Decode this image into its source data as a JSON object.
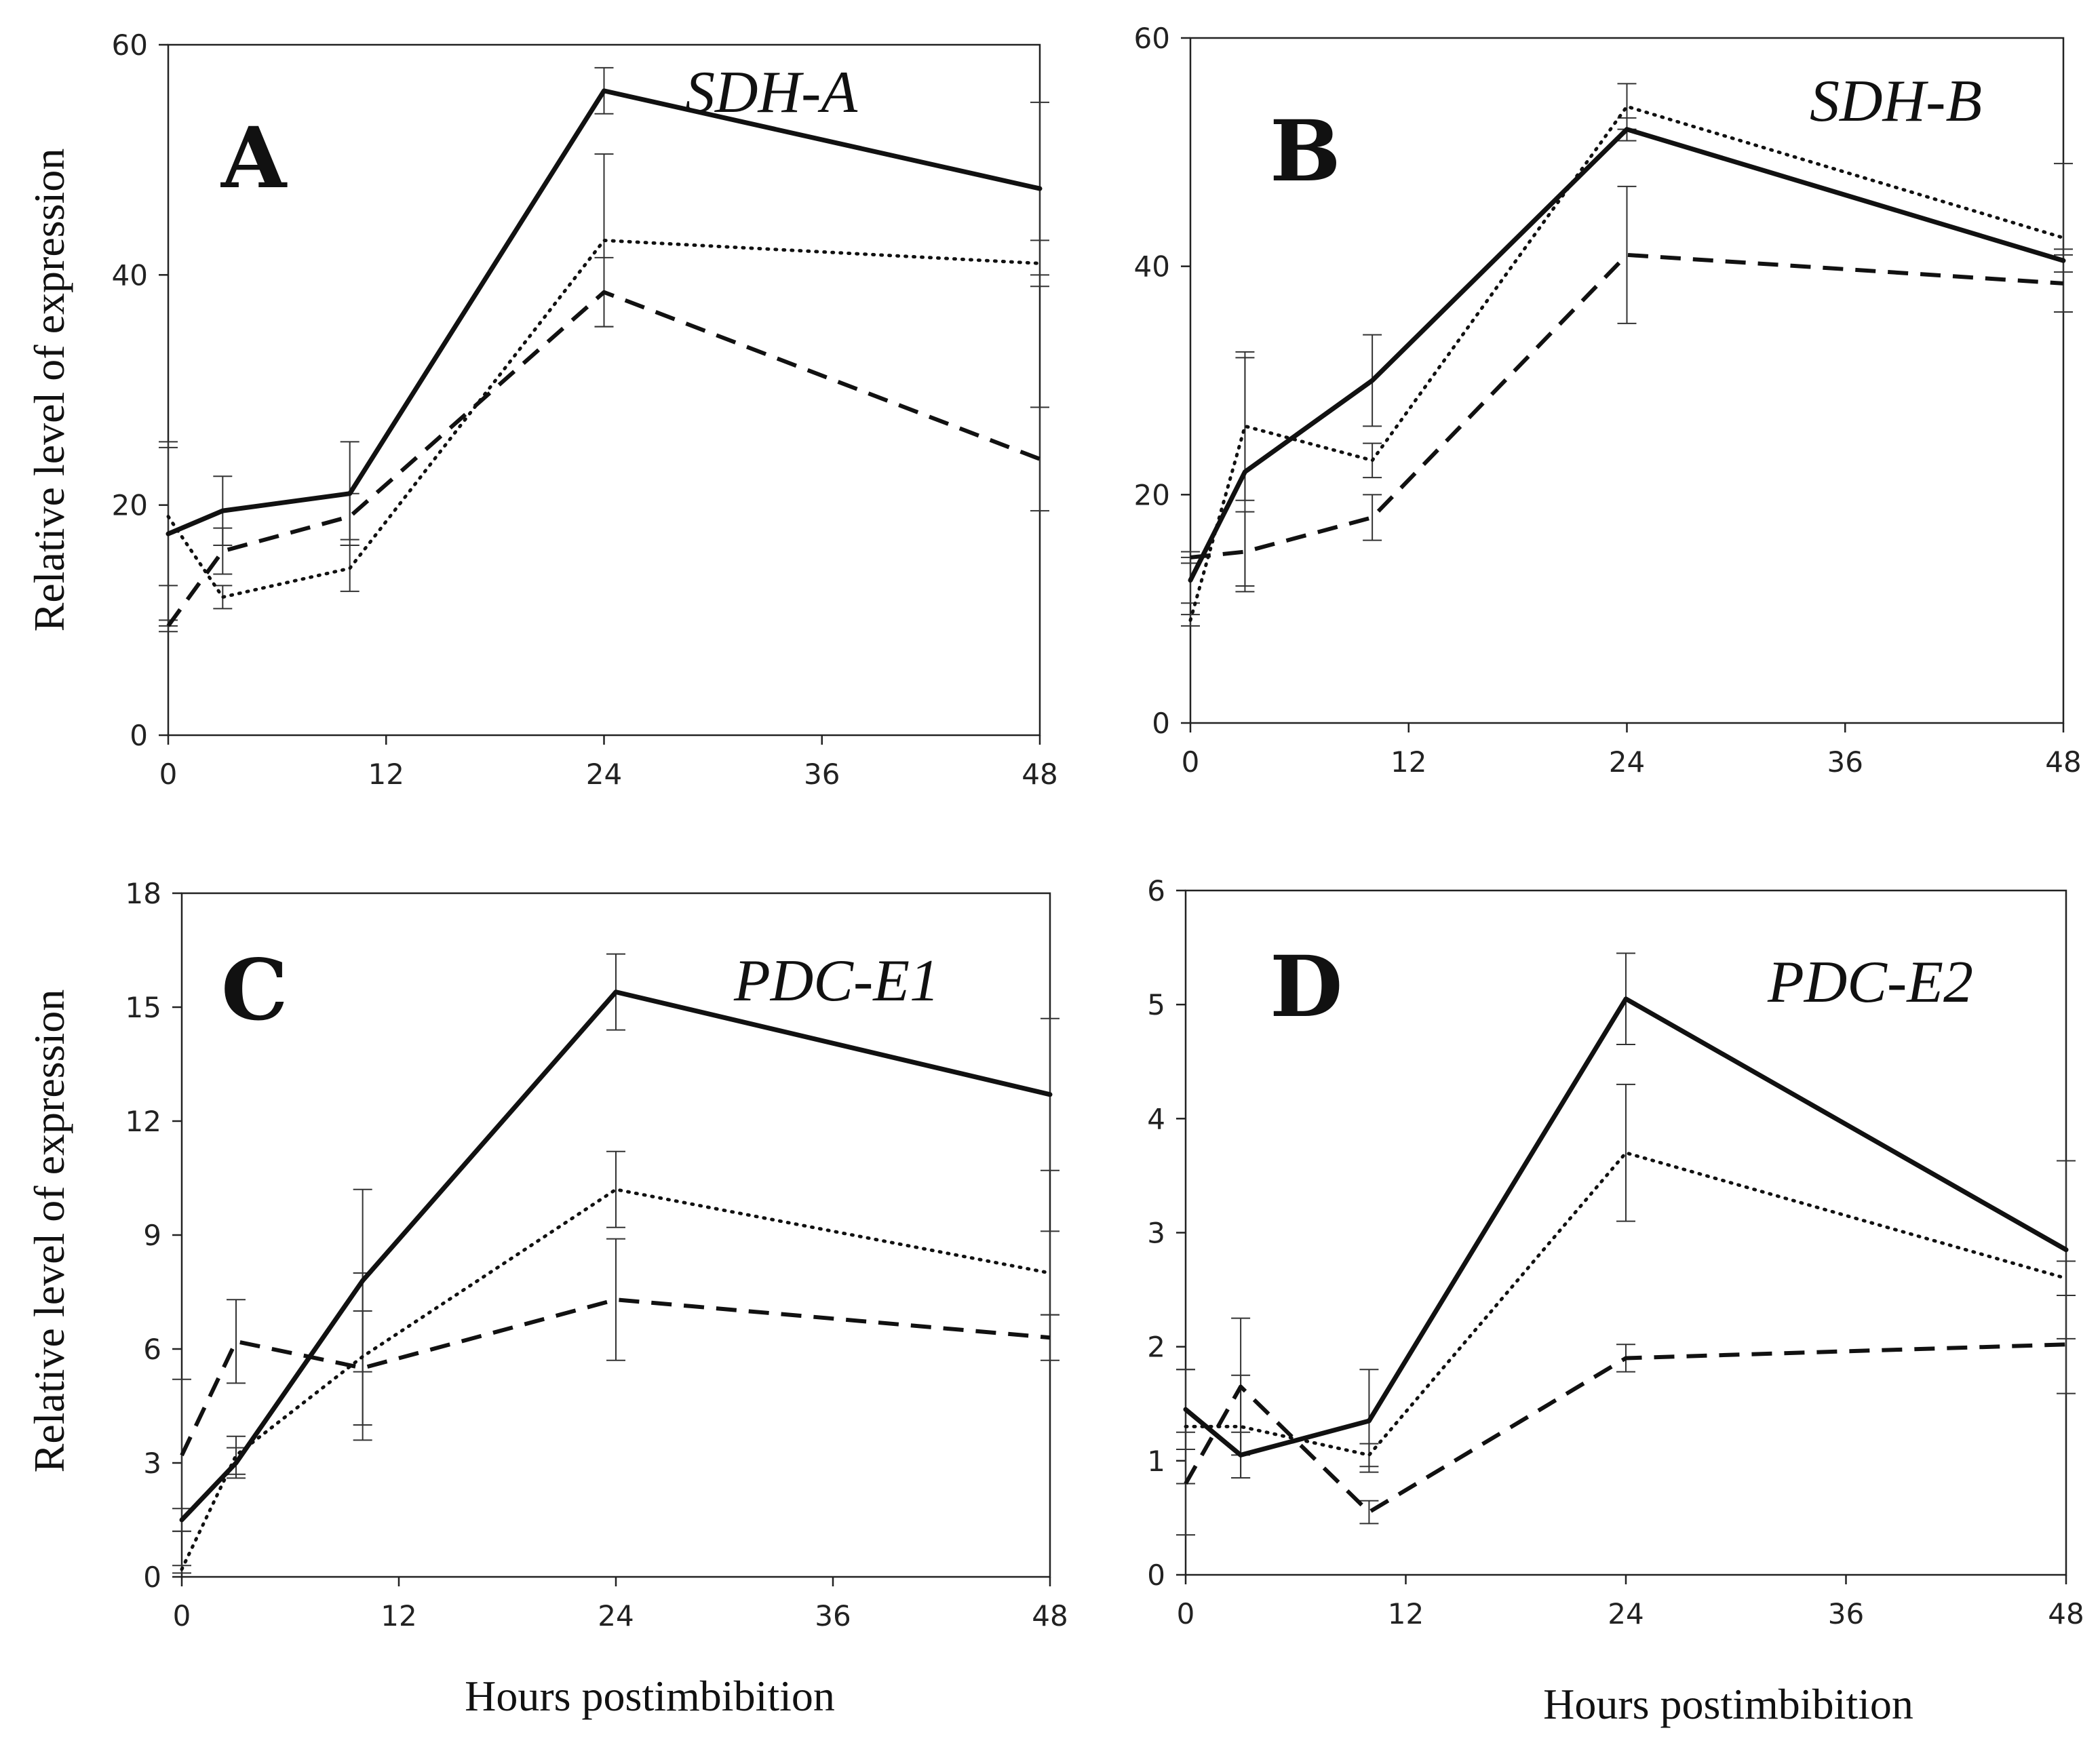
{
  "chart_data": [
    {
      "type": "line",
      "panel": "A",
      "title": "SDH-A",
      "xlabel": "",
      "ylabel": "Relative level of expression",
      "xlim": [
        0,
        48
      ],
      "ylim": [
        0,
        60
      ],
      "xticks": [
        0,
        12,
        24,
        36,
        48
      ],
      "yticks": [
        0,
        20,
        40,
        60
      ],
      "x": [
        0,
        3,
        10,
        24,
        48
      ],
      "series": [
        {
          "name": "solid",
          "style": "solid",
          "values": [
            17.5,
            19.5,
            21,
            56,
            47.5
          ],
          "errors": [
            8,
            3,
            4.5,
            2,
            7.5
          ]
        },
        {
          "name": "dotted",
          "style": "dotted",
          "values": [
            19,
            12,
            14.5,
            43,
            41
          ],
          "errors": [
            6,
            1,
            2,
            7.5,
            2
          ]
        },
        {
          "name": "dashed",
          "style": "dashed",
          "values": [
            9.5,
            16,
            19,
            38.5,
            24
          ],
          "errors": [
            0.5,
            2,
            2,
            3,
            4.5
          ]
        }
      ]
    },
    {
      "type": "line",
      "panel": "B",
      "title": "SDH-B",
      "xlabel": "",
      "ylabel": "",
      "xlim": [
        0,
        48
      ],
      "ylim": [
        0,
        60
      ],
      "xticks": [
        0,
        12,
        24,
        36,
        48
      ],
      "yticks": [
        0,
        20,
        40,
        60
      ],
      "x": [
        0,
        3,
        10,
        24,
        48
      ],
      "series": [
        {
          "name": "solid",
          "style": "solid",
          "values": [
            12.5,
            22,
            30,
            52,
            40.5
          ],
          "errors": [
            2,
            10,
            4,
            1,
            1
          ]
        },
        {
          "name": "dotted",
          "style": "dotted",
          "values": [
            9,
            26,
            23,
            54,
            42.5
          ],
          "errors": [
            0.5,
            6.5,
            1.5,
            2,
            6.5
          ]
        },
        {
          "name": "dashed",
          "style": "dashed",
          "values": [
            14.5,
            15,
            18,
            41,
            38.5
          ],
          "errors": [
            0.5,
            3.5,
            2,
            6,
            2.5
          ]
        }
      ]
    },
    {
      "type": "line",
      "panel": "C",
      "title": "PDC-E1",
      "xlabel": "Hours postimbibition",
      "ylabel": "Relative level of expression",
      "xlim": [
        0,
        48
      ],
      "ylim": [
        0,
        18
      ],
      "xticks": [
        0,
        12,
        24,
        36,
        48
      ],
      "yticks": [
        0,
        3,
        6,
        9,
        12,
        15,
        18
      ],
      "x": [
        0,
        3,
        10,
        24,
        48
      ],
      "series": [
        {
          "name": "solid",
          "style": "solid",
          "values": [
            1.5,
            3,
            7.8,
            15.4,
            12.7
          ],
          "errors": [
            0.3,
            0.4,
            2.4,
            1,
            2
          ]
        },
        {
          "name": "dotted",
          "style": "dotted",
          "values": [
            0.2,
            3.2,
            5.8,
            10.2,
            8
          ],
          "errors": [
            0.1,
            0.5,
            2.2,
            1,
            1.1
          ]
        },
        {
          "name": "dashed",
          "style": "dashed",
          "values": [
            3.2,
            6.2,
            5.5,
            7.3,
            6.3
          ],
          "errors": [
            2,
            1.1,
            1.5,
            1.6,
            0.6
          ]
        }
      ]
    },
    {
      "type": "line",
      "panel": "D",
      "title": "PDC-E2",
      "xlabel": "Hours postimbibition",
      "ylabel": "",
      "xlim": [
        0,
        48
      ],
      "ylim": [
        0,
        6
      ],
      "xticks": [
        0,
        12,
        24,
        36,
        48
      ],
      "yticks": [
        0,
        1,
        2,
        3,
        4,
        5,
        6
      ],
      "x": [
        0,
        3,
        10,
        24,
        48
      ],
      "series": [
        {
          "name": "solid",
          "style": "solid",
          "values": [
            1.45,
            1.05,
            1.35,
            5.05,
            2.85
          ],
          "errors": [
            0.35,
            0.2,
            0.45,
            0.4,
            0.78
          ]
        },
        {
          "name": "dotted",
          "style": "dotted",
          "values": [
            1.3,
            1.3,
            1.05,
            3.7,
            2.6
          ],
          "errors": [
            0.5,
            0.45,
            0.1,
            0.6,
            0.15
          ]
        },
        {
          "name": "dashed",
          "style": "dashed",
          "values": [
            0.8,
            1.65,
            0.55,
            1.9,
            2.02
          ],
          "errors": [
            0.45,
            0.6,
            0.1,
            0.12,
            0.43
          ]
        }
      ]
    }
  ]
}
